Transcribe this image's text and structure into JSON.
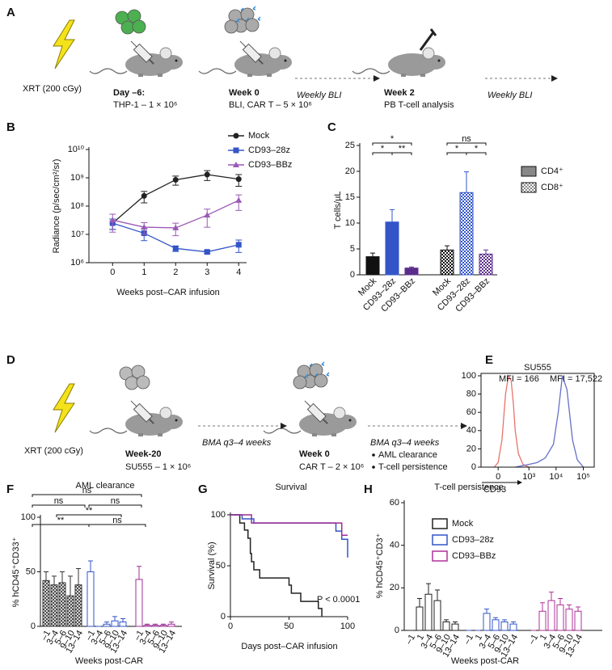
{
  "panel_a": {
    "label": "A",
    "xrt": "XRT (200 cGy)",
    "steps": [
      {
        "title": "Day –6:",
        "detail": "THP-1 – 1 × 10⁶"
      },
      {
        "title": "Week 0",
        "detail": "BLI, CAR T – 5 × 10⁶"
      },
      {
        "title": "Week 2",
        "detail": "PB T-cell analysis"
      }
    ],
    "intervals": [
      "Weekly BLI",
      "Weekly BLI"
    ]
  },
  "panel_d": {
    "label": "D",
    "xrt": "XRT (200 cGy)",
    "steps": [
      {
        "title": "Week-20",
        "detail": "SU555 – 1 × 10⁶"
      },
      {
        "title": "Week 0",
        "detail": "CAR T – 2 × 10⁶"
      }
    ],
    "intervals": [
      "BMA q3–4 weeks",
      "BMA q3–4 weeks"
    ],
    "outcomes": [
      "AML clearance",
      "T-cell persistence"
    ]
  },
  "chart_data": [
    {
      "label": "B",
      "type": "line",
      "log_y": true,
      "xlabel": "Weeks post–CAR infusion",
      "ylabel": "Radiance (p/sec/cm²/sr)",
      "x": [
        0,
        1,
        2,
        3,
        4
      ],
      "xlim": [
        -0.75,
        4.25
      ],
      "xticks": [
        0,
        1,
        2,
        3,
        4
      ],
      "ylim": [
        1000000,
        10000000000
      ],
      "yticks": [
        {
          "value": 1000000,
          "label": "10⁶"
        },
        {
          "value": 10000000,
          "label": "10⁷"
        },
        {
          "value": 100000000,
          "label": "10⁸"
        },
        {
          "value": 1000000000,
          "label": "10⁹"
        },
        {
          "value": 10000000000,
          "label": "10¹⁰"
        }
      ],
      "series": [
        {
          "name": "Mock",
          "color": "#222222",
          "marker": "circle",
          "values": [
            25000000,
            230000000,
            850000000,
            1300000000,
            900000000
          ],
          "errors": [
            10000000,
            100000000,
            300000000,
            500000000,
            400000000
          ]
        },
        {
          "name": "CD93–28z",
          "color": "#3355c8",
          "marker": "square",
          "values": [
            25000000,
            11000000,
            3200000,
            2400000,
            4300000
          ],
          "errors": [
            10000000,
            5000000,
            700000,
            300000,
            2000000
          ]
        },
        {
          "name": "CD93–BBz",
          "color": "#9b59b6",
          "marker": "triangle",
          "values": [
            32000000,
            18000000,
            17000000,
            48000000,
            160000000
          ],
          "errors": [
            20000000,
            8000000,
            8000000,
            30000000,
            90000000
          ]
        }
      ]
    },
    {
      "label": "C",
      "type": "bar",
      "ylabel": "T cells/µL",
      "categories": [
        "Mock",
        "CD93–28z",
        "CD93–BBz"
      ],
      "bar_colors": [
        "#111111",
        "#3355c8",
        "#5a2d8c"
      ],
      "legend_color": "#888888",
      "ylim": [
        0,
        25
      ],
      "yticks": [
        0,
        5,
        10,
        15,
        20,
        25
      ],
      "series": [
        {
          "name": "CD4⁺",
          "pattern": "solid",
          "values": [
            3.5,
            10.2,
            1.3
          ],
          "errors": [
            0.7,
            2.4,
            0.2
          ]
        },
        {
          "name": "CD8⁺",
          "pattern": "checker",
          "values": [
            4.8,
            15.9,
            4.0
          ],
          "errors": [
            0.8,
            4.0,
            0.8
          ]
        }
      ],
      "annotations": [
        "*",
        "*",
        "**",
        "ns",
        "*",
        "*"
      ]
    },
    {
      "label": "E",
      "type": "line",
      "title": "SU555",
      "xscale": "biexponential",
      "xlabel": "CD93",
      "xlim": [
        -300,
        250000
      ],
      "xticks": [
        0,
        {
          "value": 1000,
          "label": "10³"
        },
        {
          "value": 10000,
          "label": "10⁴"
        },
        {
          "value": 100000,
          "label": "10⁵"
        }
      ],
      "ylim": [
        0,
        100
      ],
      "yticks": [
        0,
        20,
        40,
        60,
        80,
        100
      ],
      "series": [
        {
          "color": "#e8736c",
          "x": [
            -50,
            0,
            50,
            100,
            150,
            200,
            250,
            300,
            400,
            600,
            1000
          ],
          "values": [
            0,
            5,
            30,
            80,
            100,
            95,
            70,
            40,
            15,
            3,
            0
          ]
        },
        {
          "color": "#6670c9",
          "x": [
            300,
            1000,
            2000,
            4000,
            8000,
            12000,
            17000,
            25000,
            40000,
            60000,
            100000
          ],
          "values": [
            0,
            3,
            5,
            10,
            25,
            60,
            100,
            85,
            30,
            8,
            0
          ]
        }
      ],
      "annotations": [
        "MFI = 166",
        "MFI = 17,522"
      ]
    },
    {
      "label": "F",
      "type": "bar",
      "title": "AML clearance",
      "xlabel": "Weeks post-CAR",
      "ylabel": "% hCD45⁺CD33⁺",
      "categories": [
        "–1",
        "3–4",
        "5–6",
        "9–10",
        "13–14"
      ],
      "ylim": [
        0,
        100
      ],
      "yticks": [
        0,
        50,
        100
      ],
      "series": [
        {
          "color": "#333333",
          "pattern": "crosshatch",
          "values": [
            42,
            38,
            40,
            28,
            38
          ],
          "errors": [
            8,
            8,
            10,
            18,
            15
          ]
        },
        {
          "color": "#3355c8",
          "pattern": "outline",
          "values": [
            50,
            0,
            2,
            5,
            4
          ],
          "errors": [
            10,
            0,
            2,
            4,
            3
          ]
        },
        {
          "color": "#9c2f96",
          "pattern": "outline",
          "values": [
            43,
            1,
            1,
            1,
            2
          ],
          "errors": [
            12,
            1,
            1,
            1,
            2
          ]
        }
      ],
      "annotations": [
        "ns",
        "ns",
        "ns",
        "**",
        "**",
        "ns"
      ]
    },
    {
      "label": "G",
      "type": "line",
      "step": true,
      "title": "Survival",
      "xlabel": "Days post–CAR infusion",
      "ylabel": "Survival (%)",
      "xlim": [
        0,
        100
      ],
      "xticks": [
        0,
        50,
        100
      ],
      "ylim": [
        0,
        100
      ],
      "yticks": [
        0,
        50,
        100
      ],
      "series": [
        {
          "color": "#222222",
          "x": [
            0,
            8,
            12,
            15,
            17,
            18,
            20,
            25,
            30,
            50,
            52,
            60,
            75,
            78
          ],
          "values": [
            100,
            92,
            85,
            77,
            62,
            54,
            46,
            38,
            38,
            31,
            23,
            15,
            8,
            0
          ]
        },
        {
          "color": "#3355c8",
          "x": [
            0,
            10,
            20,
            90,
            95,
            100
          ],
          "values": [
            100,
            96,
            92,
            84,
            76,
            58
          ]
        },
        {
          "color": "#9c2f96",
          "x": [
            0,
            18,
            95,
            100
          ],
          "values": [
            100,
            92,
            80,
            80
          ]
        }
      ],
      "annotation": "P < 0.0001"
    },
    {
      "label": "H",
      "type": "bar",
      "title": "T-cell persistence",
      "xlabel": "Weeks post-CAR",
      "ylabel": "% hCD45⁺CD3⁺",
      "categories": [
        "–1",
        "1",
        "3–4",
        "5–6",
        "9–10",
        "13–14"
      ],
      "ylim": [
        0,
        60
      ],
      "yticks": [
        0,
        20,
        40,
        60
      ],
      "series": [
        {
          "name": "Mock",
          "color": "#222222",
          "pattern": "outline",
          "values": [
            0,
            11,
            17,
            14,
            4,
            3
          ],
          "errors": [
            0,
            4,
            5,
            5,
            1,
            1
          ]
        },
        {
          "name": "CD93–28z",
          "color": "#3355c8",
          "pattern": "outline",
          "values": [
            0,
            0,
            8,
            5,
            4,
            3
          ],
          "errors": [
            0,
            0,
            2,
            1,
            1,
            1
          ]
        },
        {
          "name": "CD93–BBz",
          "color": "#b0309a",
          "pattern": "outline",
          "values": [
            0,
            9,
            14,
            12,
            10,
            9
          ],
          "errors": [
            0,
            4,
            4,
            3,
            2,
            2
          ]
        }
      ]
    }
  ]
}
